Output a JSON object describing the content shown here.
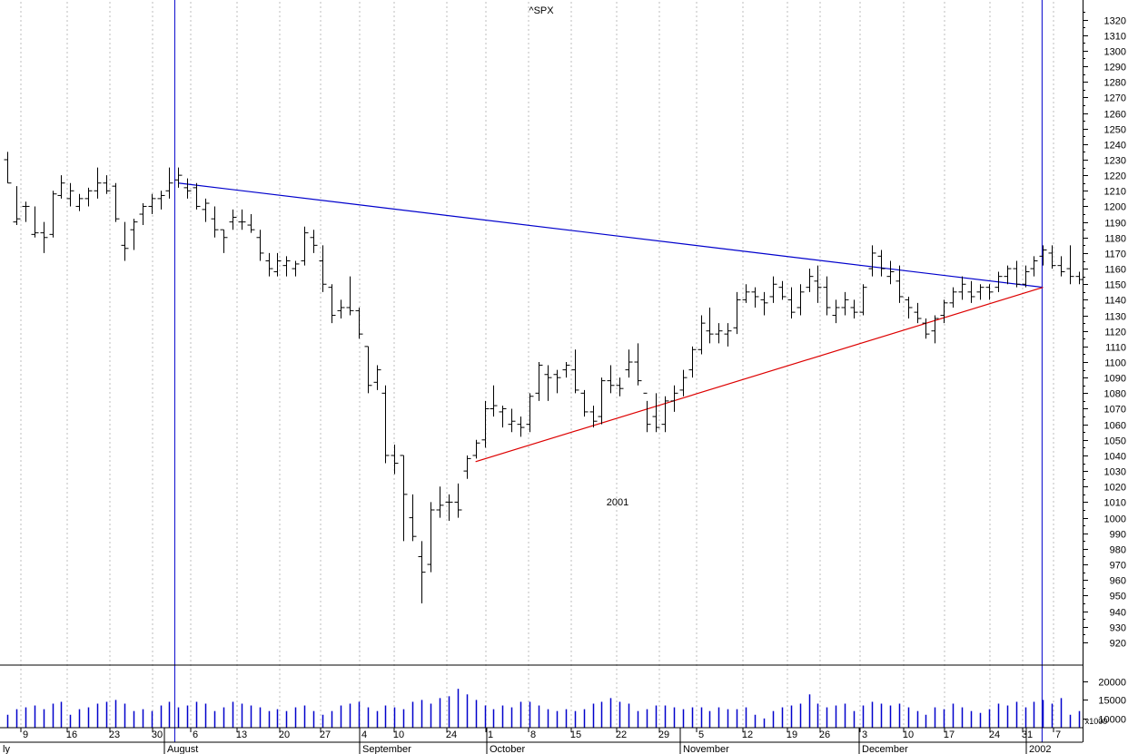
{
  "chart_data": [
    {
      "type": "ohlc",
      "title": "^SPX",
      "annotations": [
        "2001"
      ],
      "ylim": [
        910,
        1325
      ],
      "y_ticks": [
        920,
        930,
        940,
        950,
        960,
        970,
        980,
        990,
        1000,
        1010,
        1020,
        1030,
        1040,
        1050,
        1060,
        1070,
        1080,
        1090,
        1100,
        1110,
        1120,
        1130,
        1140,
        1150,
        1160,
        1170,
        1180,
        1190,
        1200,
        1210,
        1220,
        1230,
        1240,
        1250,
        1260,
        1270,
        1280,
        1290,
        1300,
        1310,
        1320
      ],
      "x_day_labels": [
        "9",
        "16",
        "23",
        "30",
        "6",
        "13",
        "20",
        "27",
        "4",
        "10",
        "24",
        "1",
        "8",
        "15",
        "22",
        "29",
        "5",
        "12",
        "19",
        "26",
        "3",
        "10",
        "17",
        "24",
        "31",
        "7"
      ],
      "x_month_labels": [
        "ly",
        "August",
        "September",
        "October",
        "November",
        "December",
        "2002"
      ],
      "grid": true,
      "colors": {
        "bars": "#000000",
        "resistance_line": "#0000cc",
        "support_line": "#dd0000",
        "volume": "#0000cc",
        "markers": "#0000cc",
        "annotation": "#0000cc"
      },
      "series": [
        {
          "name": "",
          "values": [
            [
              1235,
              1215,
              1230,
              1215
            ],
            [
              1213,
              1188,
              1190,
              1192
            ],
            [
              1203,
              1190,
              1200,
              1200
            ],
            [
              1200,
              1180,
              1182,
              1183
            ],
            [
              1190,
              1170,
              1183,
              1180
            ],
            [
              1210,
              1180,
              1182,
              1208
            ],
            [
              1220,
              1205,
              1207,
              1215
            ],
            [
              1215,
              1200,
              1205,
              1210
            ],
            [
              1208,
              1197,
              1200,
              1205
            ],
            [
              1212,
              1200,
              1205,
              1210
            ],
            [
              1225,
              1205,
              1210,
              1215
            ],
            [
              1220,
              1208,
              1215,
              1210
            ],
            [
              1215,
              1190,
              1213,
              1192
            ],
            [
              1190,
              1165,
              1175,
              1173
            ],
            [
              1192,
              1172,
              1185,
              1190
            ],
            [
              1202,
              1188,
              1195,
              1200
            ],
            [
              1208,
              1195,
              1200,
              1205
            ],
            [
              1210,
              1198,
              1205,
              1207
            ],
            [
              1225,
              1205,
              1210,
              1215
            ],
            [
              1225,
              1212,
              1217,
              1220
            ],
            [
              1218,
              1205,
              1212,
              1210
            ],
            [
              1215,
              1198,
              1212,
              1200
            ],
            [
              1205,
              1190,
              1198,
              1202
            ],
            [
              1200,
              1180,
              1192,
              1185
            ],
            [
              1185,
              1170,
              1185,
              1180
            ],
            [
              1198,
              1185,
              1190,
              1193
            ],
            [
              1198,
              1185,
              1190,
              1190
            ],
            [
              1195,
              1183,
              1188,
              1185
            ],
            [
              1185,
              1165,
              1180,
              1170
            ],
            [
              1170,
              1155,
              1165,
              1160
            ],
            [
              1170,
              1155,
              1158,
              1165
            ],
            [
              1168,
              1155,
              1162,
              1165
            ],
            [
              1165,
              1155,
              1160,
              1163
            ],
            [
              1187,
              1162,
              1165,
              1183
            ],
            [
              1185,
              1170,
              1180,
              1175
            ],
            [
              1175,
              1145,
              1165,
              1150
            ],
            [
              1150,
              1125,
              1148,
              1130
            ],
            [
              1140,
              1128,
              1133,
              1135
            ],
            [
              1155,
              1130,
              1135,
              1133
            ],
            [
              1135,
              1115,
              1133,
              1118
            ],
            [
              1110,
              1080,
              1110,
              1085
            ],
            [
              1098,
              1082,
              1087,
              1095
            ],
            [
              1085,
              1035,
              1080,
              1040
            ],
            [
              1047,
              1028,
              1040,
              1035
            ],
            [
              1040,
              985,
              1040,
              1015
            ],
            [
              1015,
              985,
              1000,
              988
            ],
            [
              985,
              945,
              975,
              965
            ],
            [
              1010,
              965,
              970,
              1005
            ],
            [
              1020,
              1000,
              1005,
              1008
            ],
            [
              1015,
              998,
              1010,
              1010
            ],
            [
              1022,
              1000,
              1010,
              1005
            ],
            [
              1040,
              1025,
              1030,
              1038
            ],
            [
              1050,
              1038,
              1040,
              1048
            ],
            [
              1075,
              1045,
              1050,
              1070
            ],
            [
              1085,
              1065,
              1070,
              1072
            ],
            [
              1072,
              1058,
              1068,
              1070
            ],
            [
              1070,
              1055,
              1060,
              1062
            ],
            [
              1065,
              1052,
              1060,
              1058
            ],
            [
              1080,
              1055,
              1060,
              1078
            ],
            [
              1100,
              1075,
              1080,
              1098
            ],
            [
              1098,
              1075,
              1092,
              1090
            ],
            [
              1095,
              1080,
              1092,
              1090
            ],
            [
              1100,
              1090,
              1095,
              1098
            ],
            [
              1108,
              1080,
              1095,
              1082
            ],
            [
              1082,
              1065,
              1080,
              1068
            ],
            [
              1072,
              1058,
              1068,
              1062
            ],
            [
              1090,
              1060,
              1065,
              1088
            ],
            [
              1098,
              1080,
              1088,
              1085
            ],
            [
              1090,
              1078,
              1085,
              1083
            ],
            [
              1108,
              1090,
              1095,
              1100
            ],
            [
              1112,
              1085,
              1100,
              1088
            ],
            [
              1075,
              1055,
              1080,
              1060
            ],
            [
              1080,
              1055,
              1065,
              1058
            ],
            [
              1078,
              1055,
              1060,
              1075
            ],
            [
              1085,
              1068,
              1075,
              1080
            ],
            [
              1095,
              1078,
              1082,
              1090
            ],
            [
              1110,
              1090,
              1095,
              1108
            ],
            [
              1130,
              1105,
              1108,
              1125
            ],
            [
              1135,
              1112,
              1120,
              1118
            ],
            [
              1125,
              1112,
              1118,
              1120
            ],
            [
              1125,
              1110,
              1118,
              1120
            ],
            [
              1145,
              1118,
              1122,
              1140
            ],
            [
              1150,
              1138,
              1140,
              1145
            ],
            [
              1148,
              1135,
              1145,
              1142
            ],
            [
              1145,
              1130,
              1140,
              1138
            ],
            [
              1155,
              1138,
              1142,
              1150
            ],
            [
              1152,
              1140,
              1148,
              1142
            ],
            [
              1148,
              1128,
              1140,
              1132
            ],
            [
              1150,
              1130,
              1135,
              1145
            ],
            [
              1160,
              1145,
              1148,
              1155
            ],
            [
              1162,
              1138,
              1152,
              1148
            ],
            [
              1155,
              1130,
              1148,
              1135
            ],
            [
              1140,
              1125,
              1130,
              1135
            ],
            [
              1145,
              1130,
              1135,
              1140
            ],
            [
              1140,
              1128,
              1135,
              1132
            ],
            [
              1150,
              1130,
              1132,
              1148
            ],
            [
              1175,
              1155,
              1160,
              1170
            ],
            [
              1172,
              1155,
              1168,
              1160
            ],
            [
              1165,
              1150,
              1155,
              1158
            ],
            [
              1162,
              1138,
              1152,
              1142
            ],
            [
              1142,
              1128,
              1140,
              1135
            ],
            [
              1138,
              1125,
              1132,
              1128
            ],
            [
              1128,
              1115,
              1125,
              1118
            ],
            [
              1130,
              1112,
              1120,
              1128
            ],
            [
              1140,
              1125,
              1130,
              1138
            ],
            [
              1148,
              1135,
              1138,
              1145
            ],
            [
              1155,
              1140,
              1145,
              1150
            ],
            [
              1152,
              1138,
              1145,
              1142
            ],
            [
              1150,
              1140,
              1145,
              1148
            ],
            [
              1150,
              1140,
              1148,
              1145
            ],
            [
              1158,
              1145,
              1148,
              1155
            ],
            [
              1162,
              1150,
              1155,
              1160
            ],
            [
              1165,
              1148,
              1160,
              1150
            ],
            [
              1162,
              1148,
              1150,
              1158
            ],
            [
              1168,
              1155,
              1160,
              1165
            ],
            [
              1175,
              1162,
              1168,
              1172
            ],
            [
              1175,
              1160,
              1170,
              1162
            ],
            [
              1168,
              1155,
              1162,
              1158
            ],
            [
              1175,
              1150,
              1160,
              1155
            ],
            [
              1158,
              1150,
              1155,
              1153
            ]
          ]
        }
      ],
      "trend_lines": [
        {
          "name": "",
          "from_bar": 19,
          "from_value": 1215,
          "to_bar": 115,
          "to_value": 1148,
          "color": "#0000cc"
        },
        {
          "name": "",
          "from_bar": 52,
          "from_value": 1036,
          "to_bar": 115,
          "to_value": 1148,
          "color": "#dd0000"
        }
      ],
      "markers": [
        {
          "at_bar": 18.6,
          "label": ""
        },
        {
          "at_bar": 114.9,
          "label": ""
        }
      ]
    },
    {
      "type": "bar",
      "title": "",
      "y_ticks": [
        10000,
        15000,
        20000
      ],
      "unit_label": "x1000",
      "values": [
        11000,
        12500,
        13000,
        13500,
        12500,
        14000,
        14500,
        11000,
        12500,
        13000,
        14000,
        14500,
        15000,
        14000,
        12000,
        12500,
        12000,
        13500,
        14500,
        13000,
        13500,
        14500,
        14000,
        12000,
        13000,
        14500,
        14000,
        13500,
        13000,
        12000,
        12500,
        12000,
        13000,
        13500,
        12000,
        11000,
        12000,
        13500,
        14000,
        14500,
        13000,
        12000,
        13500,
        13000,
        12500,
        14500,
        15000,
        14000,
        15500,
        16000,
        18000,
        16500,
        15000,
        13500,
        12500,
        13500,
        13000,
        14500,
        14500,
        13500,
        12500,
        12000,
        12500,
        12000,
        12500,
        14000,
        14500,
        15500,
        14500,
        14000,
        12000,
        12500,
        13500,
        13500,
        13000,
        12500,
        13000,
        13000,
        12000,
        13000,
        12500,
        12500,
        13000,
        11000,
        10000,
        12000,
        13000,
        13500,
        14000,
        16500,
        14000,
        13000,
        13500,
        14000,
        12000,
        13500,
        14500,
        14000,
        13500,
        14000,
        13000,
        12000,
        11000,
        13000,
        12500,
        14000,
        13000,
        12000,
        11500,
        12500,
        14000,
        13500,
        14500,
        13000,
        14500,
        15000,
        14000,
        15500,
        11000,
        12000
      ]
    }
  ]
}
